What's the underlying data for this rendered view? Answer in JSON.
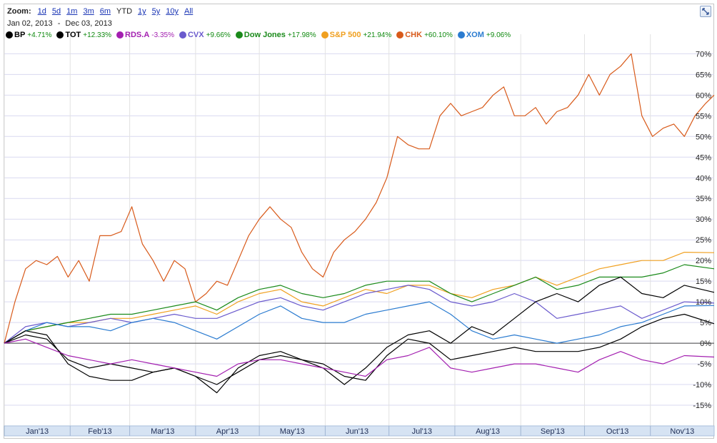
{
  "zoom": {
    "label": "Zoom:",
    "options": [
      "1d",
      "5d",
      "1m",
      "3m",
      "6m",
      "YTD",
      "1y",
      "5y",
      "10y",
      "All"
    ],
    "selected": "YTD"
  },
  "date_range": {
    "from": "Jan 02, 2013",
    "separator": "-",
    "to": "Dec 03, 2013"
  },
  "legend": [
    {
      "name": "BP",
      "change": "+4.71%",
      "color": "#000000",
      "change_color": "#118a11"
    },
    {
      "name": "TOT",
      "change": "+12.33%",
      "color": "#000000",
      "change_color": "#118a11"
    },
    {
      "name": "RDS.A",
      "change": "-3.35%",
      "color": "#a31fb0",
      "change_color": "#a31fb0"
    },
    {
      "name": "CVX",
      "change": "+9.66%",
      "color": "#6a5acd",
      "change_color": "#118a11"
    },
    {
      "name": "Dow Jones",
      "change": "+17.98%",
      "color": "#1a8a1a",
      "change_color": "#118a11"
    },
    {
      "name": "S&P 500",
      "change": "+21.94%",
      "color": "#f0a020",
      "change_color": "#118a11"
    },
    {
      "name": "CHK",
      "change": "+60.10%",
      "color": "#d85a1a",
      "change_color": "#118a11"
    },
    {
      "name": "XOM",
      "change": "+9.06%",
      "color": "#2a7bd0",
      "change_color": "#118a11"
    }
  ],
  "chart_data": {
    "type": "line",
    "ylim": [
      -20,
      73
    ],
    "y_ticks": [
      70,
      65,
      60,
      55,
      50,
      45,
      40,
      35,
      30,
      25,
      20,
      15,
      10,
      5,
      0,
      -5,
      -10,
      -15
    ],
    "y_tick_labels": [
      "70%",
      "65%",
      "60%",
      "55%",
      "50%",
      "45%",
      "40%",
      "35%",
      "30%",
      "25%",
      "20%",
      "15%",
      "10%",
      "5%",
      "0%",
      "-5%",
      "-10%",
      "-15%"
    ],
    "x_labels": [
      "Jan'13",
      "Feb'13",
      "Mar'13",
      "Apr'13",
      "May'13",
      "Jun'13",
      "Jul'13",
      "Aug'13",
      "Sep'13",
      "Oct'13",
      "Nov'13"
    ],
    "x_days": [
      0,
      31,
      59,
      90,
      120,
      151,
      181,
      212,
      243,
      273,
      304
    ],
    "x_max_day": 334,
    "grid": true,
    "series": [
      {
        "name": "CHK",
        "color": "#d85a1a",
        "x": [
          0,
          5,
          10,
          15,
          20,
          25,
          30,
          35,
          40,
          45,
          50,
          55,
          60,
          65,
          70,
          75,
          80,
          85,
          90,
          95,
          100,
          105,
          110,
          115,
          120,
          125,
          130,
          135,
          140,
          145,
          150,
          155,
          160,
          165,
          170,
          175,
          180,
          185,
          190,
          195,
          200,
          205,
          210,
          215,
          220,
          225,
          230,
          235,
          240,
          245,
          250,
          255,
          260,
          265,
          270,
          275,
          280,
          285,
          290,
          295,
          300,
          305,
          310,
          315,
          320,
          325,
          330,
          334
        ],
        "y": [
          0,
          10,
          18,
          20,
          19,
          21,
          16,
          20,
          15,
          26,
          26,
          27,
          33,
          24,
          20,
          15,
          20,
          18,
          10,
          12,
          15,
          14,
          20,
          26,
          30,
          33,
          30,
          28,
          22,
          18,
          16,
          22,
          25,
          27,
          30,
          34,
          40,
          50,
          48,
          47,
          47,
          55,
          58,
          55,
          56,
          57,
          60,
          62,
          55,
          55,
          57,
          53,
          56,
          57,
          60,
          65,
          60,
          65,
          67,
          70,
          55,
          50,
          52,
          53,
          50,
          55,
          58,
          60
        ]
      },
      {
        "name": "S&P 500",
        "color": "#f0a020",
        "x": [
          0,
          10,
          20,
          30,
          40,
          50,
          60,
          70,
          80,
          90,
          100,
          110,
          120,
          130,
          140,
          150,
          160,
          170,
          180,
          190,
          200,
          210,
          220,
          230,
          240,
          250,
          260,
          270,
          280,
          290,
          300,
          310,
          320,
          334
        ],
        "y": [
          0,
          3,
          4,
          5,
          5,
          6,
          6,
          7,
          8,
          9,
          7,
          10,
          12,
          13,
          10,
          9,
          11,
          13,
          12,
          14,
          14,
          12,
          11,
          13,
          14,
          16,
          14,
          16,
          18,
          19,
          20,
          20,
          22,
          21.9
        ]
      },
      {
        "name": "Dow Jones",
        "color": "#1a8a1a",
        "x": [
          0,
          10,
          20,
          30,
          40,
          50,
          60,
          70,
          80,
          90,
          100,
          110,
          120,
          130,
          140,
          150,
          160,
          170,
          180,
          190,
          200,
          210,
          220,
          230,
          240,
          250,
          260,
          270,
          280,
          290,
          300,
          310,
          320,
          334
        ],
        "y": [
          0,
          3,
          4,
          5,
          6,
          7,
          7,
          8,
          9,
          10,
          8,
          11,
          13,
          14,
          12,
          11,
          12,
          14,
          15,
          15,
          15,
          12,
          10,
          12,
          14,
          16,
          13,
          14,
          16,
          16,
          16,
          17,
          19,
          18
        ]
      },
      {
        "name": "CVX",
        "color": "#6a5acd",
        "x": [
          0,
          10,
          20,
          30,
          40,
          50,
          60,
          70,
          80,
          90,
          100,
          110,
          120,
          130,
          140,
          150,
          160,
          170,
          180,
          190,
          200,
          210,
          220,
          230,
          240,
          250,
          260,
          270,
          280,
          290,
          300,
          310,
          320,
          334
        ],
        "y": [
          0,
          4,
          5,
          4,
          5,
          6,
          5,
          6,
          7,
          6,
          6,
          8,
          10,
          11,
          9,
          8,
          10,
          12,
          13,
          14,
          13,
          10,
          9,
          10,
          12,
          10,
          6,
          7,
          8,
          9,
          6,
          8,
          10,
          9.7
        ]
      },
      {
        "name": "XOM",
        "color": "#2a7bd0",
        "x": [
          0,
          10,
          20,
          30,
          40,
          50,
          60,
          70,
          80,
          90,
          100,
          110,
          120,
          130,
          140,
          150,
          160,
          170,
          180,
          190,
          200,
          210,
          220,
          230,
          240,
          250,
          260,
          270,
          280,
          290,
          300,
          310,
          320,
          334
        ],
        "y": [
          0,
          3,
          5,
          4,
          4,
          3,
          5,
          6,
          5,
          3,
          1,
          4,
          7,
          9,
          6,
          5,
          5,
          7,
          8,
          9,
          10,
          7,
          3,
          1,
          2,
          1,
          0,
          1,
          2,
          4,
          5,
          7,
          9,
          9.1
        ]
      },
      {
        "name": "TOT",
        "color": "#000000",
        "x": [
          0,
          10,
          20,
          30,
          40,
          50,
          60,
          70,
          80,
          90,
          100,
          110,
          120,
          130,
          140,
          150,
          160,
          170,
          180,
          190,
          200,
          210,
          220,
          230,
          240,
          250,
          260,
          270,
          280,
          290,
          300,
          310,
          320,
          334
        ],
        "y": [
          0,
          3,
          2,
          -5,
          -8,
          -9,
          -9,
          -7,
          -6,
          -8,
          -12,
          -6,
          -3,
          -2,
          -4,
          -6,
          -10,
          -6,
          -1,
          2,
          3,
          0,
          4,
          2,
          6,
          10,
          12,
          10,
          14,
          16,
          12,
          11,
          14,
          12.3
        ]
      },
      {
        "name": "BP",
        "color": "#000000",
        "x": [
          0,
          10,
          20,
          30,
          40,
          50,
          60,
          70,
          80,
          90,
          100,
          110,
          120,
          130,
          140,
          150,
          160,
          170,
          180,
          190,
          200,
          210,
          220,
          230,
          240,
          250,
          260,
          270,
          280,
          290,
          300,
          310,
          320,
          334
        ],
        "y": [
          0,
          2,
          1,
          -4,
          -6,
          -5,
          -6,
          -7,
          -6,
          -8,
          -10,
          -7,
          -4,
          -3,
          -4,
          -5,
          -8,
          -9,
          -3,
          1,
          0,
          -4,
          -3,
          -2,
          -1,
          -2,
          -2,
          -2,
          -1,
          1,
          4,
          6,
          7,
          4.7
        ]
      },
      {
        "name": "RDS.A",
        "color": "#a31fb0",
        "x": [
          0,
          10,
          20,
          30,
          40,
          50,
          60,
          70,
          80,
          90,
          100,
          110,
          120,
          130,
          140,
          150,
          160,
          170,
          180,
          190,
          200,
          210,
          220,
          230,
          240,
          250,
          260,
          270,
          280,
          290,
          300,
          310,
          320,
          334
        ],
        "y": [
          0,
          1,
          -1,
          -3,
          -4,
          -5,
          -4,
          -5,
          -6,
          -7,
          -8,
          -5,
          -4,
          -4,
          -5,
          -6,
          -7,
          -8,
          -4,
          -3,
          -1,
          -6,
          -7,
          -6,
          -5,
          -5,
          -6,
          -7,
          -4,
          -2,
          -4,
          -5,
          -3,
          -3.35
        ]
      }
    ]
  }
}
